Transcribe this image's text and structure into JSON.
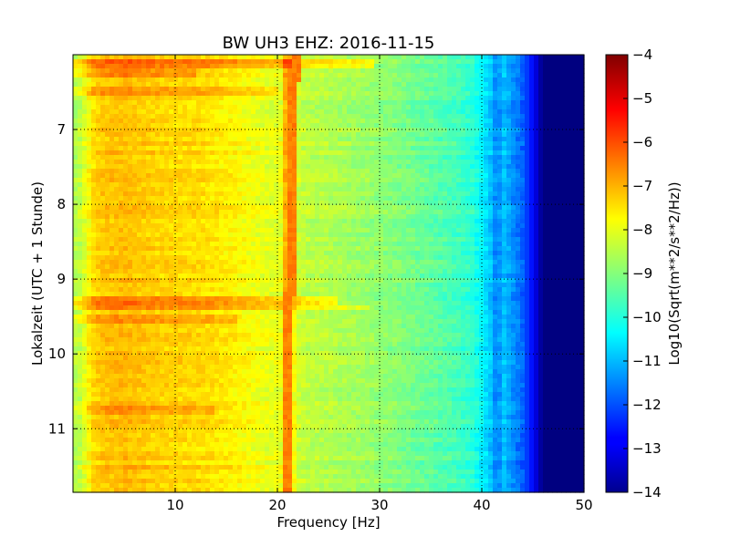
{
  "chart_data": {
    "type": "heatmap",
    "title": "BW UH3 EHZ: 2016-11-15",
    "xlabel": "Frequency [Hz]",
    "ylabel": "Lokalzeit (UTC + 1 Stunde)",
    "xlim": [
      0,
      50
    ],
    "ylim": [
      11.85,
      6.0
    ],
    "xticks": [
      10,
      20,
      30,
      40,
      50
    ],
    "yticks": [
      7,
      8,
      9,
      10,
      11
    ],
    "grid": true,
    "colormap": "jet",
    "colorbar": {
      "label": "Log10(Sqrt(m**2/s**2/Hz))",
      "vmin": -14,
      "vmax": -4,
      "ticks": [
        -4,
        -5,
        -6,
        -7,
        -8,
        -9,
        -10,
        -11,
        -12,
        -13,
        -14
      ]
    },
    "spectrum_profile": {
      "frequency_hz": [
        0,
        0.8,
        2,
        3,
        5,
        8,
        12,
        15,
        17,
        19,
        20.3,
        21,
        21.8,
        23,
        25,
        28,
        31,
        34,
        37,
        39,
        40,
        41,
        42,
        43,
        44,
        45,
        46,
        50
      ],
      "value": [
        -8.6,
        -8.3,
        -7.4,
        -7.2,
        -7.1,
        -7.3,
        -7.4,
        -7.6,
        -7.8,
        -8.0,
        -8.0,
        -6.4,
        -8.2,
        -8.4,
        -8.5,
        -8.7,
        -8.9,
        -9.2,
        -9.5,
        -9.8,
        -10.3,
        -10.9,
        -10.8,
        -11.3,
        -11.8,
        -12.7,
        -14.0,
        -14.0
      ]
    },
    "line_feature": {
      "description": "narrow high-amplitude line",
      "frequency_hz_start": 21.7,
      "frequency_hz_end": 20.8,
      "value": -6.5
    },
    "broadband_events": [
      {
        "time": 6.12,
        "f_max": 29.5,
        "boost": 0.9
      },
      {
        "time": 6.25,
        "f_max": 12,
        "boost": 0.5
      },
      {
        "time": 6.48,
        "f_max": 20,
        "boost": 0.5
      },
      {
        "time": 9.27,
        "f_max": 26,
        "boost": 0.9
      },
      {
        "time": 9.38,
        "f_max": 29,
        "boost": 0.7
      },
      {
        "time": 9.55,
        "f_max": 16,
        "boost": 0.45
      },
      {
        "time": 10.75,
        "f_max": 14,
        "boost": 0.4
      },
      {
        "time": 11.52,
        "f_max": 22,
        "boost": 0.45
      }
    ]
  }
}
